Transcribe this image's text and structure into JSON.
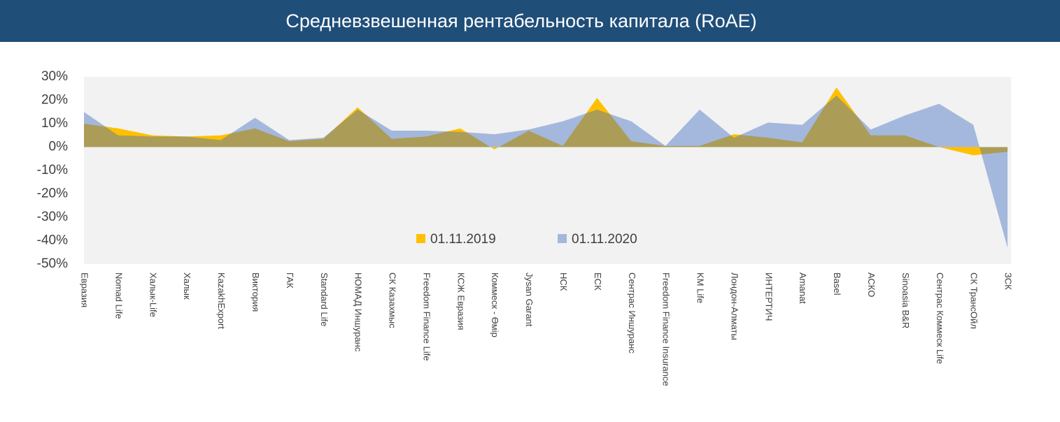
{
  "chart_data": {
    "type": "area",
    "title": "Средневзвешенная рентабельность капитала (RoAE)",
    "categories": [
      "Евразия",
      "Nomad Life",
      "Халык-Life",
      "Халык",
      "KazakhExport",
      "Виктория",
      "ГАК",
      "Standard Life",
      "НОМАД Иншуранс",
      "СК Казахмыс",
      "Freedom Finance Life",
      "КСЖ Евразия",
      "Коммеск - Өмір",
      "Jysan Garant",
      "НСК",
      "ЕСК",
      "Сентрас Иншуранс",
      "Freedom Finance Insurance",
      "KM Life",
      "Лондон-Алматы",
      "ИНТЕРТИЧ",
      "Amanat",
      "Basel",
      "АСКО",
      "Sinoasia B&R",
      "Сентрас Коммеск Life",
      "СК ТрансОйл",
      "ЗСК"
    ],
    "series": [
      {
        "name": "01.11.2019",
        "color": "#ffc000",
        "values": [
          10,
          8,
          5,
          4.5,
          5,
          8,
          2.5,
          3.5,
          17,
          3.5,
          4.5,
          8,
          -1,
          7,
          0.5,
          21,
          2.5,
          0.5,
          0.5,
          5.5,
          4,
          2,
          25.5,
          5,
          5,
          0,
          -3.5,
          -2
        ]
      },
      {
        "name": "01.11.2020",
        "color": "#4472c4",
        "values": [
          15,
          5,
          4.5,
          4.5,
          3,
          12.5,
          3,
          4,
          16,
          7,
          7,
          6.5,
          5.5,
          7.5,
          11,
          16,
          11,
          0.5,
          16,
          4,
          10.5,
          9.5,
          22,
          7.5,
          13.5,
          18.5,
          9.5,
          -43
        ]
      }
    ],
    "ylim": [
      -50,
      30
    ],
    "yticks": [
      {
        "value": -50,
        "label": "-50%"
      },
      {
        "value": -40,
        "label": "-40%"
      },
      {
        "value": -30,
        "label": "-30%"
      },
      {
        "value": -20,
        "label": "-20%"
      },
      {
        "value": -10,
        "label": "-10%"
      },
      {
        "value": 0,
        "label": "0%"
      },
      {
        "value": 10,
        "label": "10%"
      },
      {
        "value": 20,
        "label": "20%"
      },
      {
        "value": 30,
        "label": "30%"
      }
    ],
    "legend": "center"
  }
}
